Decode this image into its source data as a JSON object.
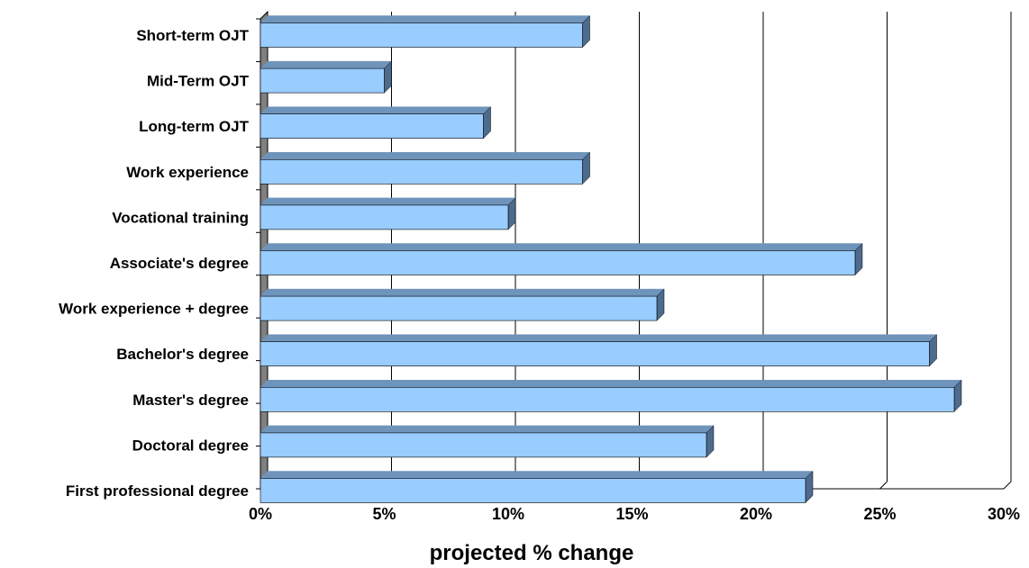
{
  "chart_data": {
    "type": "bar",
    "orientation": "horizontal",
    "title": "",
    "xlabel": "projected % change",
    "ylabel": "",
    "categories": [
      "Short-term OJT",
      "Mid-Term OJT",
      "Long-term OJT",
      "Work experience",
      "Vocational training",
      "Associate's degree",
      "Work experience + degree",
      "Bachelor's degree",
      "Master's degree",
      "Doctoral degree",
      "First professional degree"
    ],
    "values": [
      13,
      5,
      9,
      13,
      10,
      24,
      16,
      27,
      28,
      18,
      22
    ],
    "xlim": [
      0,
      30
    ],
    "xticks": [
      0,
      5,
      10,
      15,
      20,
      25,
      30
    ],
    "tick_labels": [
      "0%",
      "5%",
      "10%",
      "15%",
      "20%",
      "25%",
      "30%"
    ],
    "grid": "vertical",
    "legend": "none",
    "colors": {
      "bar_front": "#99ccff",
      "bar_top": "#6f94bb",
      "bar_side": "#4d6b8d",
      "bar_edge": "#000000",
      "axis_wall": "#808080",
      "grid": "#000000"
    }
  }
}
